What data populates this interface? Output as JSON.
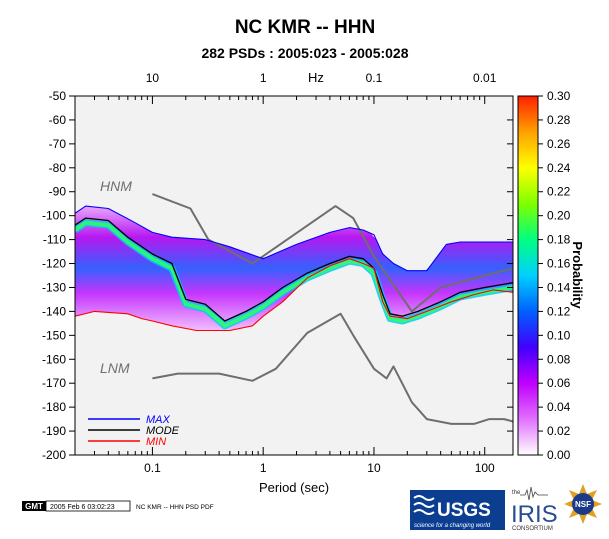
{
  "chart_data": {
    "type": "heatmap",
    "title": "NC KMR -- HHN",
    "subtitle": "282 PSDs : 2005:023 - 2005:028",
    "xlabel": "Period (sec)",
    "top_axis_label": "Hz",
    "xscale": "log",
    "xlim": [
      0.02,
      180
    ],
    "ylim": [
      -200,
      -50
    ],
    "x_ticks": [
      {
        "value": 0.1,
        "label": "0.1"
      },
      {
        "value": 1,
        "label": "1"
      },
      {
        "value": 10,
        "label": "10"
      },
      {
        "value": 100,
        "label": "100"
      }
    ],
    "top_ticks": [
      {
        "value": 0.1,
        "label": "10"
      },
      {
        "value": 1,
        "label": "1"
      },
      {
        "value": 10,
        "label": "0.1"
      },
      {
        "value": 100,
        "label": "0.01"
      }
    ],
    "y_ticks": [
      -50,
      -60,
      -70,
      -80,
      -90,
      -100,
      -110,
      -120,
      -130,
      -140,
      -150,
      -160,
      -170,
      -180,
      -190,
      -200
    ],
    "colorbar": {
      "label": "Probability",
      "range": [
        0,
        0.3
      ],
      "ticks": [
        "0.00",
        "0.02",
        "0.04",
        "0.06",
        "0.08",
        "0.10",
        "0.12",
        "0.14",
        "0.16",
        "0.18",
        "0.20",
        "0.22",
        "0.24",
        "0.26",
        "0.28",
        "0.30"
      ],
      "colors": [
        "#ffffff",
        "#e070ff",
        "#c000ff",
        "#4000ff",
        "#0060ff",
        "#00d0ff",
        "#00ff80",
        "#80ff00",
        "#ffff00",
        "#ffa000",
        "#ff2000"
      ]
    },
    "noise_models": [
      {
        "name": "HNM",
        "points": [
          [
            0.1,
            -91
          ],
          [
            0.22,
            -97
          ],
          [
            0.32,
            -110
          ],
          [
            0.8,
            -120
          ],
          [
            4.5,
            -96
          ],
          [
            6.5,
            -101
          ],
          [
            10,
            -117
          ],
          [
            22,
            -140
          ],
          [
            40,
            -130
          ],
          [
            100,
            -125
          ],
          [
            180,
            -122
          ]
        ]
      },
      {
        "name": "LNM",
        "points": [
          [
            0.1,
            -168
          ],
          [
            0.17,
            -166
          ],
          [
            0.4,
            -166
          ],
          [
            0.8,
            -169
          ],
          [
            1.3,
            -164
          ],
          [
            2.5,
            -149
          ],
          [
            5,
            -141
          ],
          [
            6.5,
            -150
          ],
          [
            10,
            -164
          ],
          [
            13,
            -168
          ],
          [
            15,
            -163
          ],
          [
            22,
            -178
          ],
          [
            30,
            -185
          ],
          [
            50,
            -187
          ],
          [
            80,
            -187
          ],
          [
            110,
            -185
          ],
          [
            150,
            -185
          ],
          [
            180,
            -186
          ]
        ]
      }
    ],
    "series": [
      {
        "name": "MAX",
        "color": "#0000ff",
        "points": [
          [
            0.02,
            -99
          ],
          [
            0.025,
            -96
          ],
          [
            0.04,
            -97
          ],
          [
            0.07,
            -103
          ],
          [
            0.1,
            -107
          ],
          [
            0.15,
            -109
          ],
          [
            0.3,
            -110
          ],
          [
            0.5,
            -113
          ],
          [
            1,
            -118
          ],
          [
            2,
            -112
          ],
          [
            4,
            -107
          ],
          [
            6,
            -105
          ],
          [
            8,
            -106
          ],
          [
            10,
            -108
          ],
          [
            12,
            -116
          ],
          [
            15,
            -120
          ],
          [
            20,
            -123
          ],
          [
            30,
            -123
          ],
          [
            45,
            -112
          ],
          [
            60,
            -111
          ],
          [
            100,
            -111
          ],
          [
            150,
            -111
          ],
          [
            180,
            -111
          ]
        ]
      },
      {
        "name": "MODE",
        "color": "#000000",
        "points": [
          [
            0.02,
            -104
          ],
          [
            0.025,
            -101
          ],
          [
            0.04,
            -102
          ],
          [
            0.06,
            -109
          ],
          [
            0.1,
            -116
          ],
          [
            0.15,
            -120
          ],
          [
            0.2,
            -135
          ],
          [
            0.3,
            -137
          ],
          [
            0.45,
            -144
          ],
          [
            0.7,
            -140
          ],
          [
            1,
            -136
          ],
          [
            1.5,
            -130
          ],
          [
            2.5,
            -124
          ],
          [
            4,
            -120
          ],
          [
            6,
            -117
          ],
          [
            8,
            -118
          ],
          [
            10,
            -122
          ],
          [
            12,
            -133
          ],
          [
            14,
            -141
          ],
          [
            18,
            -142
          ],
          [
            25,
            -140
          ],
          [
            40,
            -136
          ],
          [
            60,
            -132
          ],
          [
            100,
            -130
          ],
          [
            180,
            -128
          ]
        ]
      },
      {
        "name": "MIN",
        "color": "#ff0000",
        "points": [
          [
            0.02,
            -142
          ],
          [
            0.03,
            -140
          ],
          [
            0.06,
            -141
          ],
          [
            0.08,
            -143
          ],
          [
            0.1,
            -144
          ],
          [
            0.15,
            -146
          ],
          [
            0.25,
            -148
          ],
          [
            0.5,
            -148
          ],
          [
            0.8,
            -146
          ],
          [
            1,
            -142
          ],
          [
            1.5,
            -136
          ],
          [
            2.5,
            -126
          ],
          [
            4,
            -121
          ],
          [
            6,
            -118
          ],
          [
            8,
            -120
          ],
          [
            10,
            -122
          ],
          [
            12,
            -136
          ],
          [
            14,
            -142
          ],
          [
            20,
            -143
          ],
          [
            30,
            -140
          ],
          [
            50,
            -136
          ],
          [
            80,
            -133
          ],
          [
            120,
            -131
          ],
          [
            180,
            -132
          ]
        ]
      }
    ],
    "legend": {
      "placement": "bottom-left",
      "entries": [
        "MAX",
        "MODE",
        "MIN"
      ]
    }
  },
  "footer": {
    "gmt_logo": "GMT",
    "timestamp": "2005 Feb  6 03:02:23",
    "caption": "NC KMR -- HHN PSD PDF",
    "usgs_logo": "USGS",
    "usgs_tagline": "science for a changing world",
    "iris_the": "the",
    "iris_logo": "IRIS",
    "iris_consortium": "CONSORTIUM",
    "nsf_logo": "NSF"
  }
}
